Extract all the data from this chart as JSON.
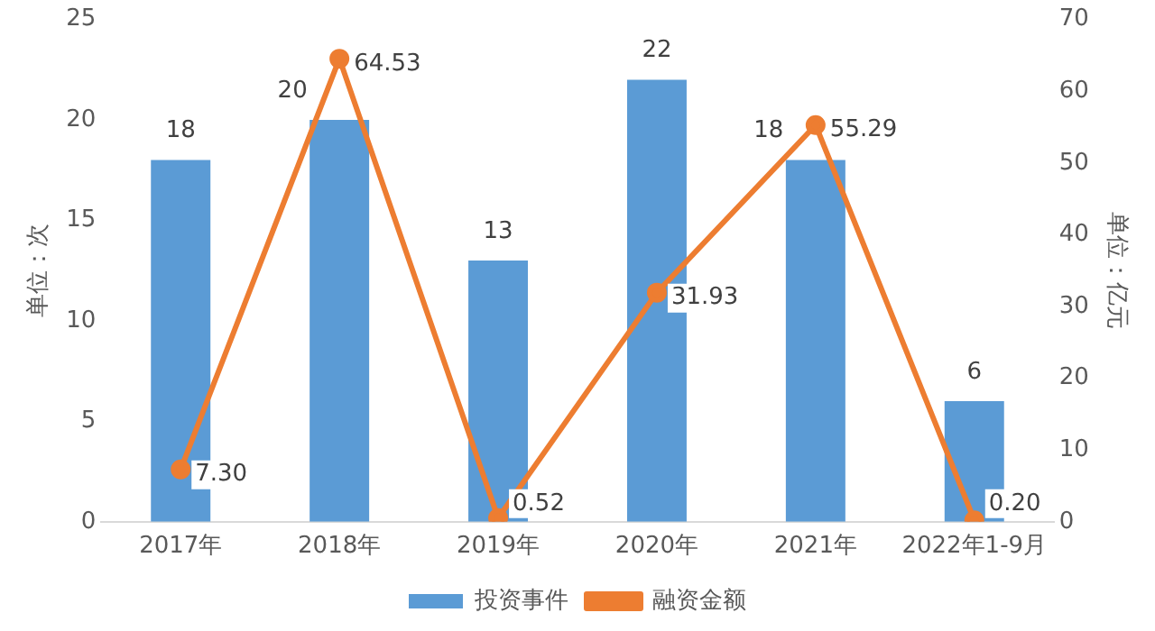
{
  "chart_data": {
    "type": "bar",
    "categories": [
      "2017年",
      "2018年",
      "2019年",
      "2020年",
      "2021年",
      "2022年1-9月"
    ],
    "ylabel": "单位：次",
    "y2label": "单位：亿元",
    "ylim": [
      0,
      25
    ],
    "yticks": [
      0,
      5,
      10,
      15,
      20,
      25
    ],
    "y2lim": [
      0,
      70
    ],
    "y2ticks": [
      0,
      10,
      20,
      30,
      40,
      50,
      60,
      70
    ],
    "series": [
      {
        "name": "投资事件",
        "color": "#5b9bd5",
        "values": [
          18,
          20,
          13,
          22,
          18,
          6
        ],
        "value_labels": [
          "18",
          "20",
          "13",
          "22",
          "18",
          "6"
        ]
      },
      {
        "name": "融资金额",
        "type": "line",
        "axis": "y2",
        "color": "#ed7d31",
        "marker": "circle",
        "values": [
          7.3,
          64.53,
          0.52,
          31.93,
          55.29,
          0.2
        ],
        "value_labels": [
          "7.30",
          "64.53",
          "0.52",
          "31.93",
          "55.29",
          "0.20"
        ]
      }
    ],
    "legend": "bottom",
    "grid": false
  }
}
